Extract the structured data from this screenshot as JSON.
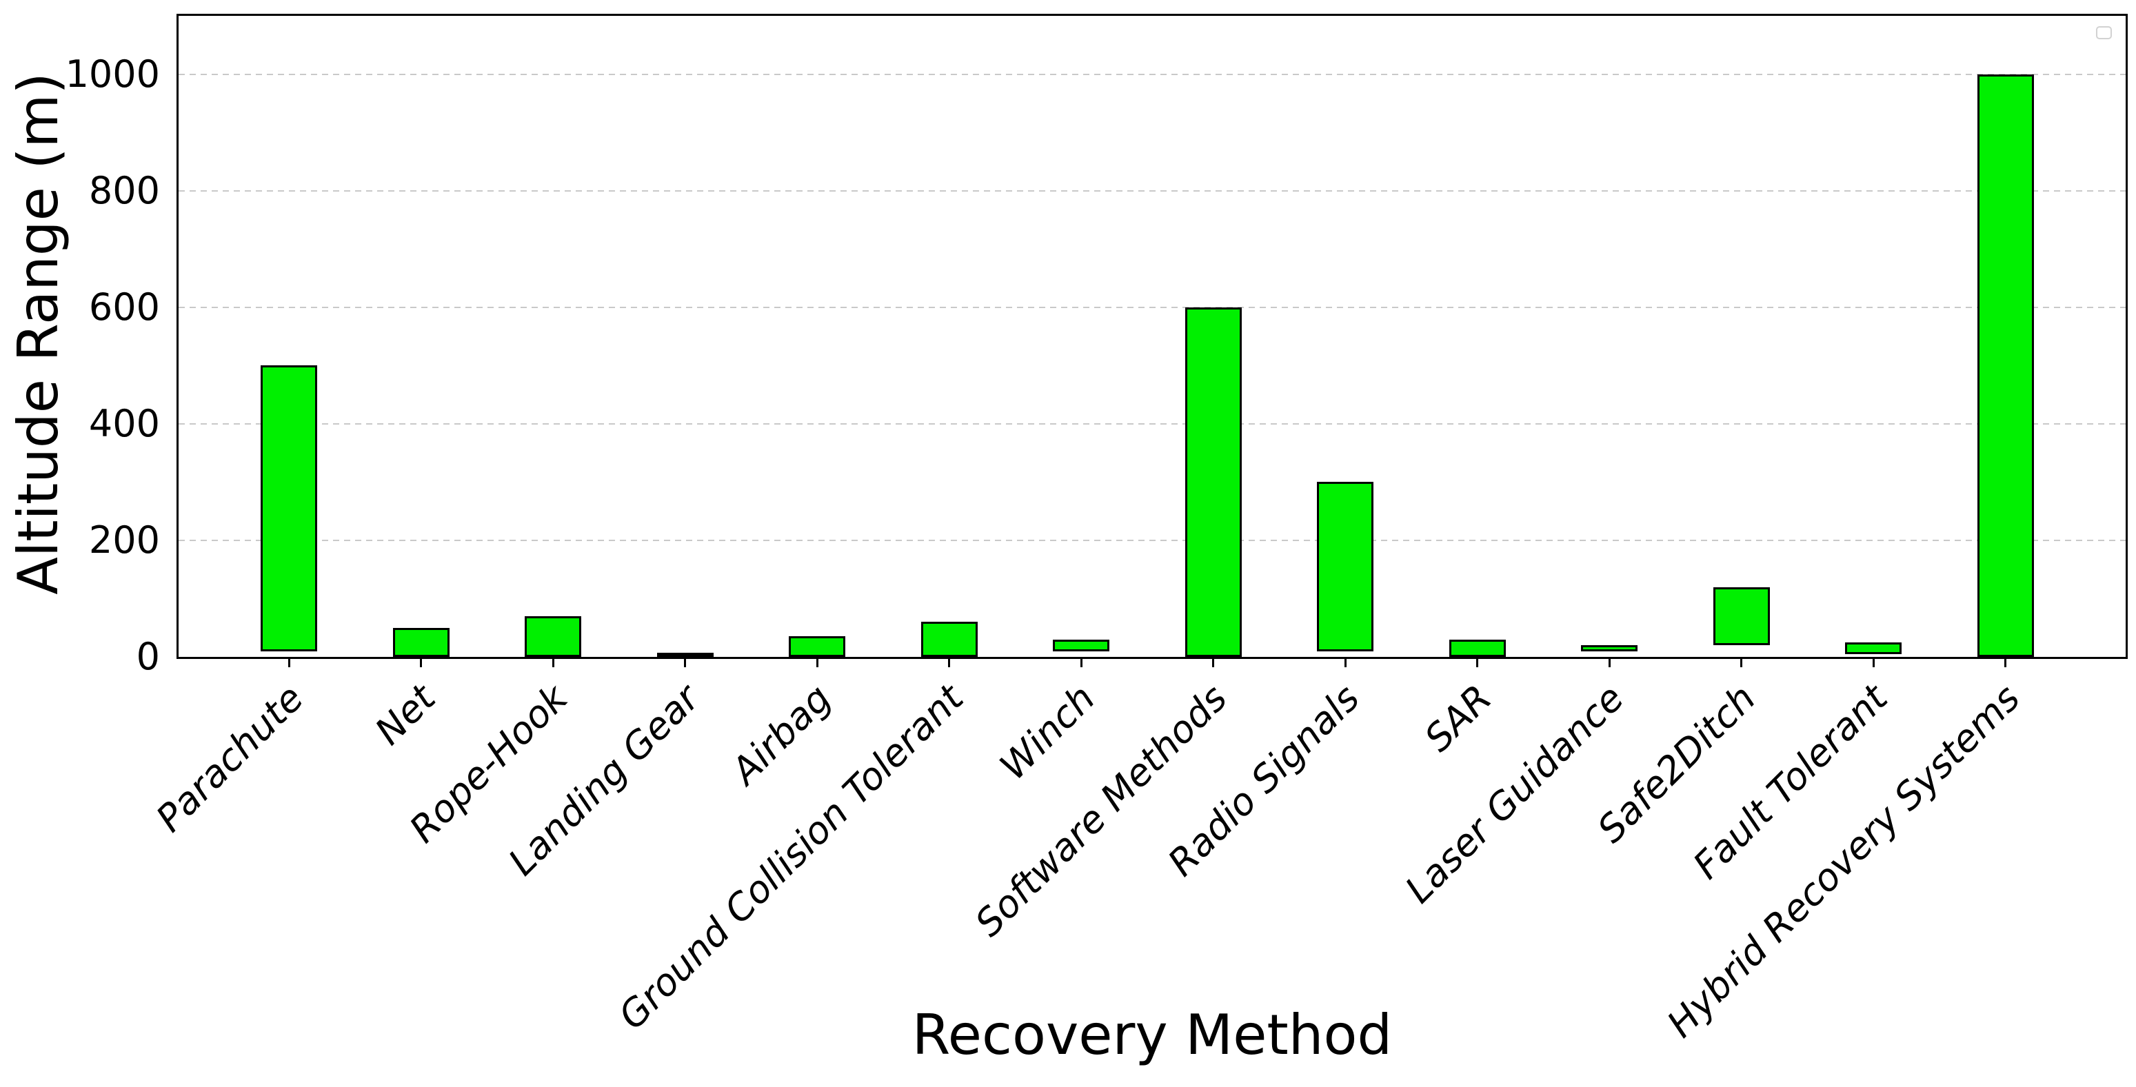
{
  "chart_data": {
    "type": "bar",
    "title": "",
    "xlabel": "Recovery Method",
    "ylabel": "Altitude Range (m)",
    "categories": [
      "Parachute",
      "Net",
      "Rope-Hook",
      "Landing Gear",
      "Airbag",
      "Ground Collision Tolerant",
      "Winch",
      "Software Methods",
      "Radio Signals",
      "SAR",
      "Laser Guidance",
      "Safe2Ditch",
      "Fault Tolerant",
      "Hybrid Recovery Systems"
    ],
    "series": [
      {
        "name": "Altitude Range (m)",
        "ranges": [
          {
            "min": 10,
            "max": 500
          },
          {
            "min": 0,
            "max": 50
          },
          {
            "min": 0,
            "max": 70
          },
          {
            "min": 0,
            "max": 2
          },
          {
            "min": 0,
            "max": 35
          },
          {
            "min": 0,
            "max": 60
          },
          {
            "min": 10,
            "max": 30
          },
          {
            "min": 0,
            "max": 600
          },
          {
            "min": 10,
            "max": 300
          },
          {
            "min": 0,
            "max": 30
          },
          {
            "min": 10,
            "max": 20
          },
          {
            "min": 20,
            "max": 120
          },
          {
            "min": 5,
            "max": 25
          },
          {
            "min": 0,
            "max": 1000
          }
        ]
      }
    ],
    "ylim": [
      0,
      1100
    ],
    "yticks": [
      0,
      200,
      400,
      600,
      800,
      1000
    ],
    "grid": "horizontal-dashed",
    "legend": {
      "visible": true,
      "entries": [],
      "position": "upper-right"
    },
    "colors": {
      "bar_fill": "#00f000",
      "bar_edge": "#000000",
      "grid_line": "#c9c9c9",
      "spine": "#000000",
      "text": "#000000"
    }
  }
}
